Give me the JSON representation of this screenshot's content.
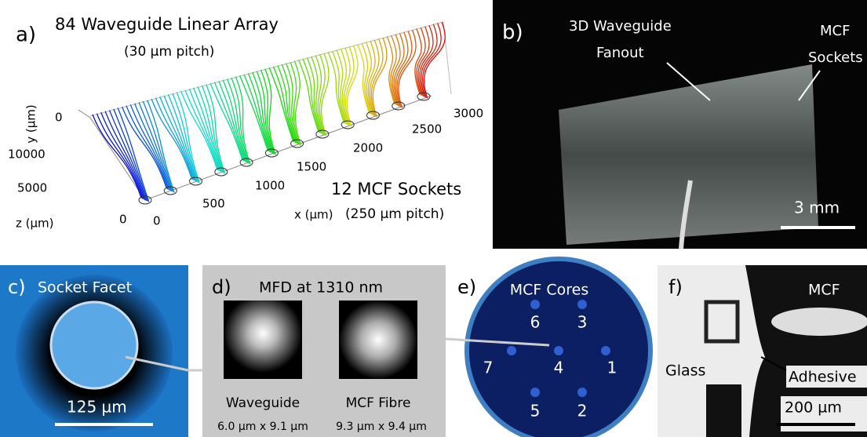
{
  "panel_a": {
    "label": "a)",
    "title": "84 Waveguide Linear Array",
    "subtitle": "(30 µm pitch)",
    "y_axis_label": "y (µm)",
    "z_axis_label": "z (µm)",
    "x_axis_label": "x (µm)",
    "y_ticks": [
      "0"
    ],
    "z_ticks": [
      "10000",
      "5000",
      "0"
    ],
    "x_ticks": [
      "0",
      "500",
      "1000",
      "1500",
      "2000",
      "2500",
      "3000"
    ],
    "note": "12 MCF Sockets",
    "note_sub": "(250 µm pitch)"
  },
  "panel_b": {
    "label": "b)",
    "fanout_line1": "3D Waveguide",
    "fanout_line2": "Fanout",
    "sockets_line1": "MCF",
    "sockets_line2": "Sockets",
    "scale": "3 mm"
  },
  "panel_c": {
    "label": "c)",
    "title": "Socket Facet",
    "scale": "125 µm"
  },
  "panel_d": {
    "label": "d)",
    "title": "MFD at 1310 nm",
    "left_name": "Waveguide",
    "right_name": "MCF Fibre",
    "left_size": "6.0 µm x 9.1 µm",
    "right_size": "9.3 µm x 9.4 µm"
  },
  "panel_e": {
    "label": "e)",
    "title": "MCF Cores",
    "cores": [
      "6",
      "3",
      "7",
      "4",
      "1",
      "5",
      "2"
    ]
  },
  "panel_f": {
    "label": "f)",
    "fibre": "MCF",
    "glass": "Glass",
    "adhesive": "Adhesive",
    "scale": "200 µm"
  }
}
